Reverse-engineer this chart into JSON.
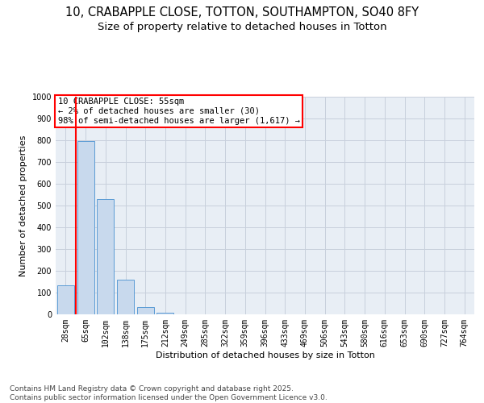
{
  "title_line1": "10, CRABAPPLE CLOSE, TOTTON, SOUTHAMPTON, SO40 8FY",
  "title_line2": "Size of property relative to detached houses in Totton",
  "xlabel": "Distribution of detached houses by size in Totton",
  "ylabel": "Number of detached properties",
  "categories": [
    "28sqm",
    "65sqm",
    "102sqm",
    "138sqm",
    "175sqm",
    "212sqm",
    "249sqm",
    "285sqm",
    "322sqm",
    "359sqm",
    "396sqm",
    "433sqm",
    "469sqm",
    "506sqm",
    "543sqm",
    "580sqm",
    "616sqm",
    "653sqm",
    "690sqm",
    "727sqm",
    "764sqm"
  ],
  "values": [
    135,
    795,
    530,
    160,
    35,
    8,
    0,
    0,
    0,
    0,
    0,
    0,
    0,
    0,
    0,
    0,
    0,
    0,
    0,
    0,
    0
  ],
  "bar_color": "#c8d9ed",
  "bar_edge_color": "#5b9bd5",
  "grid_color": "#c8d0dc",
  "background_color": "#e8eef5",
  "annotation_text": "10 CRABAPPLE CLOSE: 55sqm\n← 2% of detached houses are smaller (30)\n98% of semi-detached houses are larger (1,617) →",
  "annotation_box_color": "white",
  "annotation_box_edge_color": "red",
  "vline_color": "red",
  "ylim": [
    0,
    1000
  ],
  "yticks": [
    0,
    100,
    200,
    300,
    400,
    500,
    600,
    700,
    800,
    900,
    1000
  ],
  "footnote": "Contains HM Land Registry data © Crown copyright and database right 2025.\nContains public sector information licensed under the Open Government Licence v3.0.",
  "title_fontsize": 10.5,
  "subtitle_fontsize": 9.5,
  "axis_label_fontsize": 8,
  "tick_fontsize": 7,
  "annotation_fontsize": 7.5,
  "footnote_fontsize": 6.5
}
